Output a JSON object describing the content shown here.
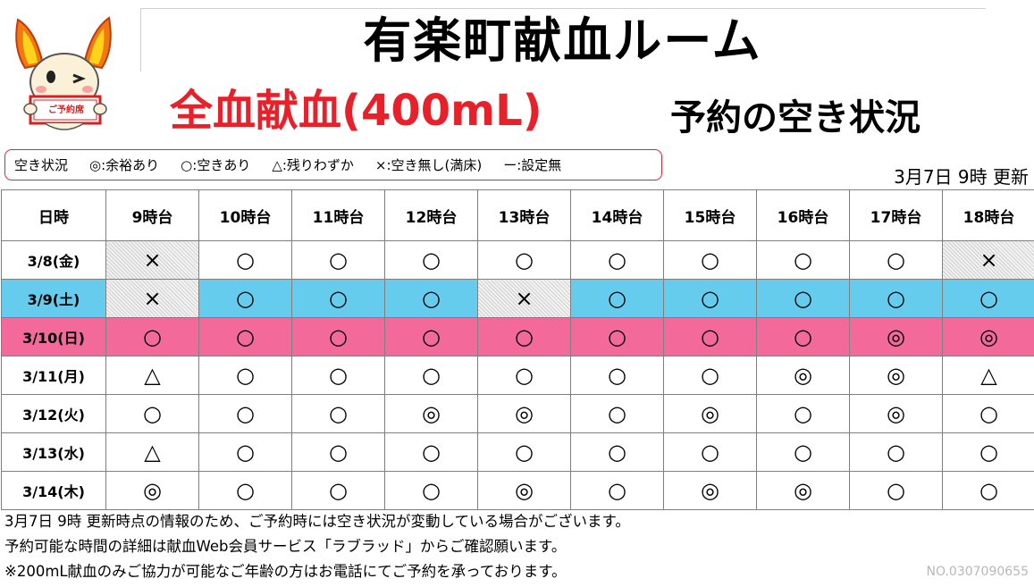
{
  "header": {
    "title": "有楽町献血ルーム",
    "subtitle_red": "全血献血(400mL)",
    "subtitle_black": "予約の空き状況",
    "mascot_sign": "ご予約席"
  },
  "legend": {
    "label": "空き状況",
    "items": [
      "◎:余裕あり",
      "○:空きあり",
      "△:残りわずか",
      "×:空き無し(満床)",
      "ー:設定無"
    ]
  },
  "updated": "3月7日 9時 更新",
  "table": {
    "header": [
      "日時",
      "9時台",
      "10時台",
      "11時台",
      "12時台",
      "13時台",
      "14時台",
      "15時台",
      "16時台",
      "17時台",
      "18時台"
    ],
    "rows": [
      {
        "date": "3/8(金)",
        "slots": [
          "×",
          "○",
          "○",
          "○",
          "○",
          "○",
          "○",
          "○",
          "○",
          "×"
        ],
        "type": "weekday"
      },
      {
        "date": "3/9(土)",
        "slots": [
          "×",
          "○",
          "○",
          "○",
          "×",
          "○",
          "○",
          "○",
          "○",
          "○"
        ],
        "type": "sat"
      },
      {
        "date": "3/10(日)",
        "slots": [
          "○",
          "○",
          "○",
          "○",
          "○",
          "○",
          "○",
          "○",
          "◎",
          "◎"
        ],
        "type": "sun"
      },
      {
        "date": "3/11(月)",
        "slots": [
          "△",
          "○",
          "○",
          "○",
          "○",
          "○",
          "○",
          "◎",
          "◎",
          "△"
        ],
        "type": "weekday"
      },
      {
        "date": "3/12(火)",
        "slots": [
          "○",
          "○",
          "○",
          "◎",
          "◎",
          "○",
          "◎",
          "○",
          "◎",
          "○"
        ],
        "type": "weekday"
      },
      {
        "date": "3/13(水)",
        "slots": [
          "△",
          "○",
          "○",
          "○",
          "○",
          "○",
          "○",
          "○",
          "○",
          "○"
        ],
        "type": "weekday"
      },
      {
        "date": "3/14(木)",
        "slots": [
          "◎",
          "○",
          "○",
          "○",
          "◎",
          "○",
          "◎",
          "◎",
          "○",
          "○"
        ],
        "type": "weekday"
      }
    ]
  },
  "notes": [
    "3月7日 9時 更新時点の情報のため、ご予約時には空き状況が変動している場合がございます。",
    "予約可能な時間の詳細は献血Web会員サービス「ラブラッド」からご確認願います。",
    "※200mL献血のみご協力が可能なご年齢の方はお電話にてご予約を承っております。"
  ],
  "doc_number": "NO.0307090655",
  "colors": {
    "accent_red": "#e8202a",
    "saturday_row": "#66ccee",
    "sunday_row": "#f2699a"
  }
}
